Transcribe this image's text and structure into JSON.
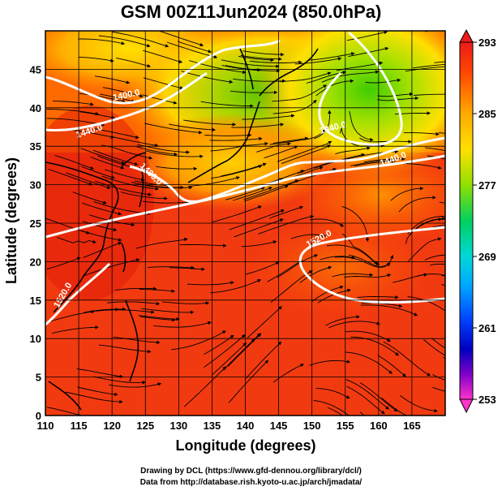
{
  "title": "GSM 00Z11Jun2024 (850.0hPa)",
  "axes": {
    "x_label": "Longitude (degrees)",
    "y_label": "Latitude (degrees)",
    "x_ticks": [
      "110",
      "115",
      "120",
      "125",
      "130",
      "135",
      "140",
      "145",
      "150",
      "155",
      "160",
      "165"
    ],
    "y_ticks": [
      "0",
      "5",
      "10",
      "15",
      "20",
      "25",
      "30",
      "35",
      "40",
      "45"
    ],
    "x_range": [
      110,
      170
    ],
    "y_range": [
      0,
      50
    ]
  },
  "colorbar": {
    "ticks": [
      "293",
      "285",
      "277",
      "269",
      "261",
      "253"
    ],
    "min": 253,
    "max": 293,
    "colors": [
      "#ff33cc",
      "#6a00c8",
      "#0000d0",
      "#0058ff",
      "#00b8ff",
      "#00e0c0",
      "#00d060",
      "#40cc00",
      "#a0e000",
      "#ffe000",
      "#ffaa00",
      "#ff7000",
      "#ff3a00",
      "#ee1a1a"
    ]
  },
  "contour_labels": [
    "1400.0",
    "1440.0",
    "1480.0",
    "1480.0",
    "1440.0",
    "1440.0",
    "1520.0",
    "1520.0"
  ],
  "credits": {
    "line1": "Drawing by DCL (https://www.gfd-dennou.org/library/dcl/)",
    "line2": "Data from http://database.rish.kyoto-u.ac.jp/arch/jmadata/"
  }
}
